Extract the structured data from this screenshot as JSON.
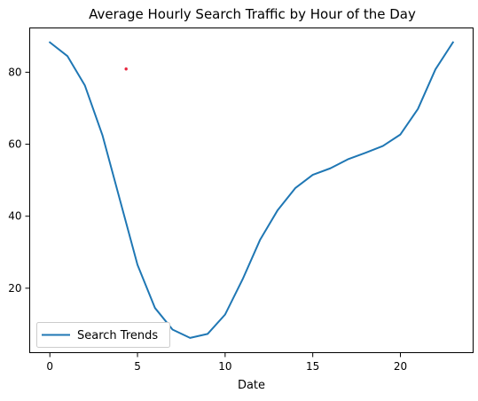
{
  "chart_data": {
    "type": "line",
    "title": "Average Hourly Search Traffic by Hour of the Day",
    "xlabel": "Date",
    "ylabel": "",
    "xlim": [
      -1.15,
      24.15
    ],
    "ylim": [
      2.1,
      92.3
    ],
    "x_ticks": [
      0,
      5,
      10,
      15,
      20
    ],
    "y_ticks": [
      20,
      40,
      60,
      80
    ],
    "grid": false,
    "legend_placement": "lower-left",
    "series": [
      {
        "name": "Search Trends",
        "color": "#1f77b4",
        "x": [
          0,
          1,
          2,
          3,
          4,
          5,
          6,
          7,
          8,
          9,
          10,
          11,
          12,
          13,
          14,
          15,
          16,
          17,
          18,
          19,
          20,
          21,
          22,
          23
        ],
        "y": [
          88.3,
          84.5,
          76.3,
          62.5,
          44.5,
          26.5,
          14.5,
          8.5,
          6.2,
          7.3,
          12.7,
          22.5,
          33.5,
          41.7,
          47.8,
          51.5,
          53.3,
          55.8,
          57.6,
          59.5,
          62.7,
          69.8,
          80.8,
          88.3
        ]
      }
    ],
    "annotations": [
      {
        "type": "point",
        "x": 4.35,
        "y": 80.9,
        "color": "#e8273f"
      }
    ]
  }
}
